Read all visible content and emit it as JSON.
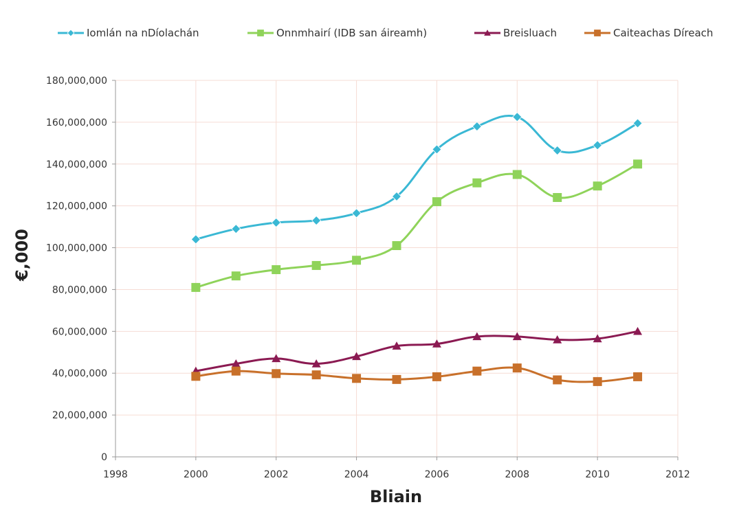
{
  "chart_data": {
    "type": "line",
    "xlabel": "Bliain",
    "ylabel": "€,000",
    "xlim": [
      1998,
      2012
    ],
    "ylim": [
      0,
      180000000
    ],
    "xticks": [
      1998,
      2000,
      2002,
      2004,
      2006,
      2008,
      2010,
      2012
    ],
    "xtick_labels": [
      "1998",
      "2000",
      "2002",
      "2004",
      "2006",
      "2008",
      "2010",
      "2012"
    ],
    "yticks": [
      0,
      20000000,
      40000000,
      60000000,
      80000000,
      100000000,
      120000000,
      140000000,
      160000000,
      180000000
    ],
    "ytick_labels": [
      "0",
      "20,000,000",
      "40,000,000",
      "60,000,000",
      "80,000,000",
      "100,000,000",
      "120,000,000",
      "140,000,000",
      "160,000,000",
      "180,000,000"
    ],
    "grid": true,
    "legend_position": "top",
    "x": [
      2000,
      2001,
      2002,
      2003,
      2004,
      2005,
      2006,
      2007,
      2008,
      2009,
      2010,
      2011
    ],
    "series": [
      {
        "name": "Iomlán na nDíolachán",
        "color": "#3ab8d4",
        "marker": "diamond",
        "values": [
          104000000,
          109000000,
          112000000,
          113000000,
          116500000,
          124500000,
          147000000,
          158000000,
          162500000,
          146500000,
          149000000,
          159500000
        ]
      },
      {
        "name": "Onnmhairí (IDB san áireamh)",
        "color": "#8fd35a",
        "marker": "square",
        "values": [
          81000000,
          86500000,
          89500000,
          91500000,
          94000000,
          101000000,
          122000000,
          131000000,
          135000000,
          124000000,
          129500000,
          140000000
        ]
      },
      {
        "name": "Breisluach",
        "color": "#8b1a52",
        "marker": "triangle",
        "values": [
          41000000,
          44500000,
          47000000,
          44500000,
          48000000,
          53000000,
          54000000,
          57500000,
          57500000,
          56000000,
          56500000,
          60000000
        ]
      },
      {
        "name": "Caiteachas Díreach",
        "color": "#c8702a",
        "marker": "square",
        "values": [
          38500000,
          41000000,
          39800000,
          39200000,
          37500000,
          37000000,
          38300000,
          41000000,
          42500000,
          36800000,
          36000000,
          38300000
        ]
      }
    ]
  }
}
